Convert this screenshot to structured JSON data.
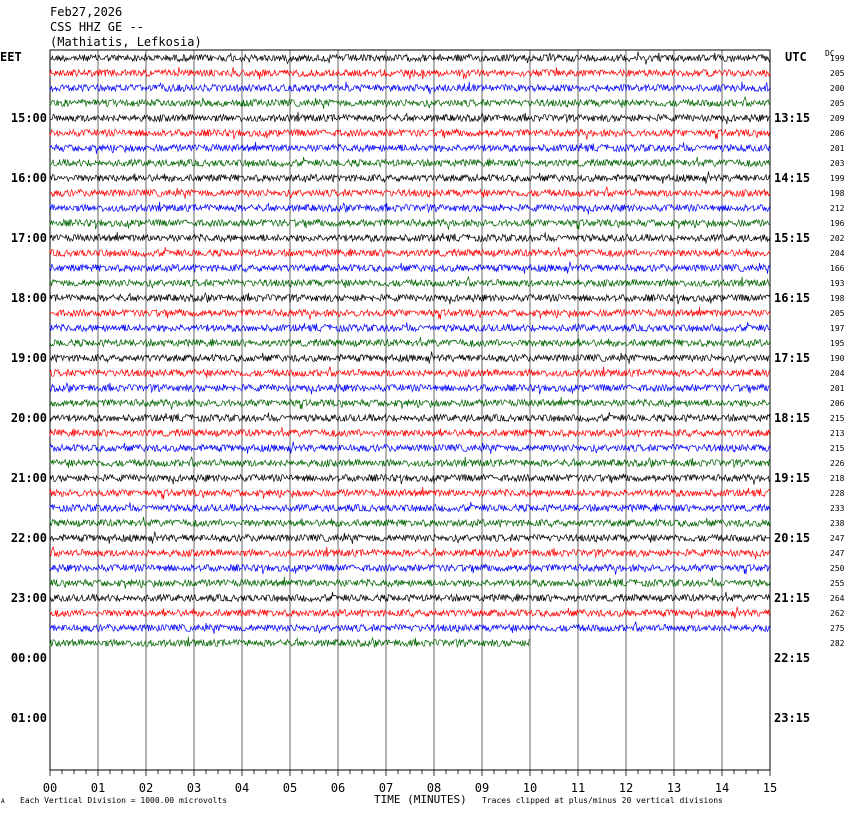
{
  "header": {
    "date": "Feb27,2026",
    "station": "CSS HHZ GE --",
    "location": "(Mathiatis, Lefkosia)"
  },
  "left_tz": "EET",
  "right_tz": "UTC",
  "dc_label": "DC",
  "left_hours": [
    "15:00",
    "16:00",
    "17:00",
    "18:00",
    "19:00",
    "20:00",
    "21:00",
    "22:00",
    "23:00",
    "00:00",
    "01:00"
  ],
  "right_hours": [
    "13:15",
    "14:15",
    "15:15",
    "16:15",
    "17:15",
    "18:15",
    "19:15",
    "20:15",
    "21:15",
    "22:15",
    "23:15"
  ],
  "dc_values": [
    "199",
    "205",
    "200",
    "205",
    "209",
    "206",
    "201",
    "203",
    "199",
    "198",
    "212",
    "196",
    "202",
    "204",
    "166",
    "193",
    "198",
    "205",
    "197",
    "195",
    "190",
    "204",
    "201",
    "206",
    "215",
    "213",
    "215",
    "226",
    "218",
    "228",
    "233",
    "238",
    "247",
    "247",
    "250",
    "255",
    "264",
    "262",
    "275",
    "282"
  ],
  "x_ticks": [
    "00",
    "01",
    "02",
    "03",
    "04",
    "05",
    "06",
    "07",
    "08",
    "09",
    "10",
    "11",
    "12",
    "13",
    "14",
    "15"
  ],
  "footer": {
    "scale_note": "Each Vertical Division = 1000.00 microvolts",
    "xlabel": "TIME (MINUTES)",
    "clip_note": "Traces clipped at plus/minus 20 vertical divisions",
    "logo_mark": "A"
  },
  "chart_data": {
    "type": "line",
    "title": "CSS HHZ GE --",
    "xlabel": "TIME (MINUTES)",
    "ylabel": "",
    "xlim": [
      0,
      15
    ],
    "grid": true,
    "trace_colors": [
      "#000000",
      "#ff0000",
      "#0000ff",
      "#006400"
    ],
    "traces_per_hour": 4,
    "minutes_per_trace": 15,
    "trace_count": 40,
    "last_trace_end_minute": 10
  }
}
